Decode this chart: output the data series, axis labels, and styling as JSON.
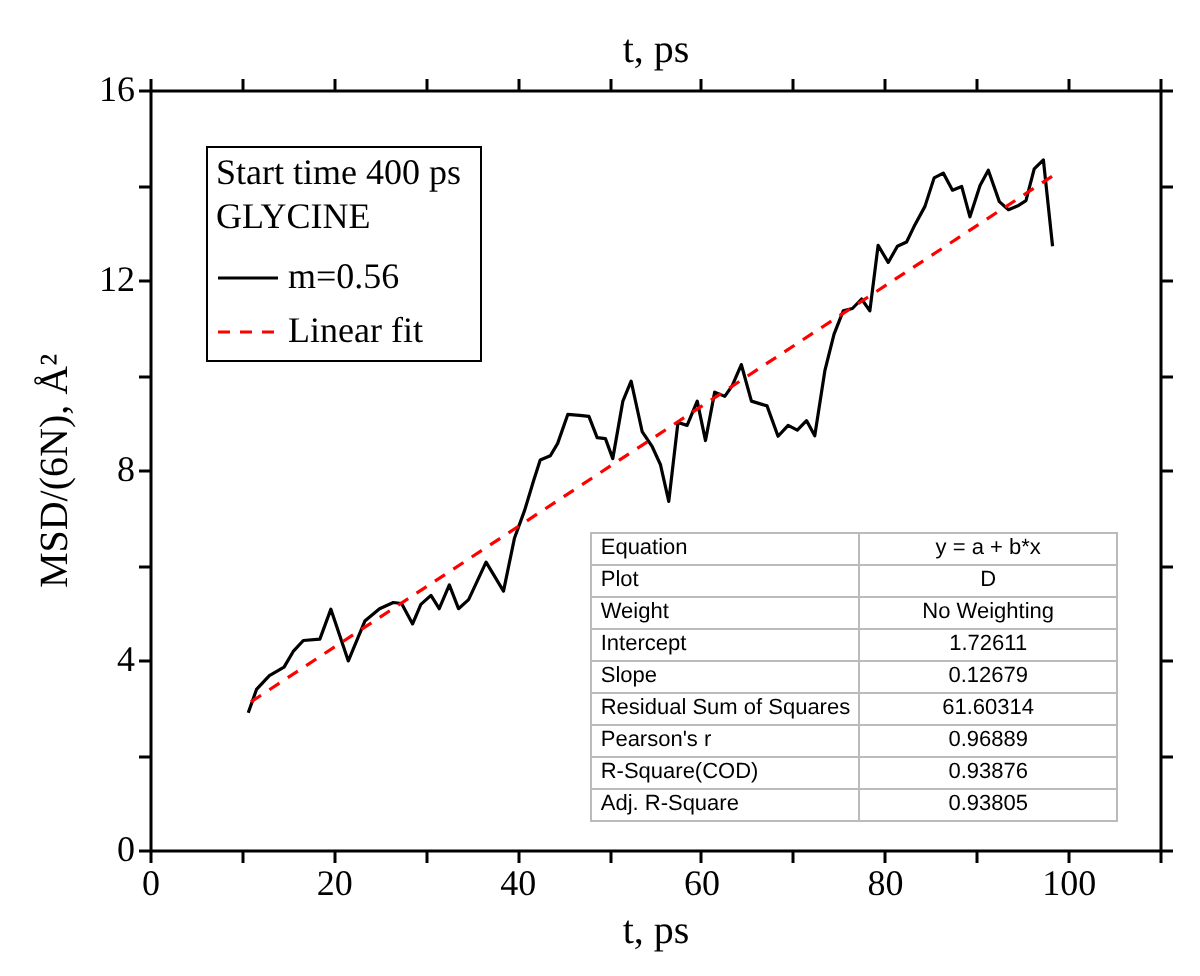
{
  "chart_data": {
    "type": "line",
    "xlabel": "t, ps",
    "x2label": "t, ps",
    "ylabel": "MSD/(6N), Å²",
    "legend_title": "Start time  400 ps\nGLYCINE",
    "legend": "top left",
    "grid": false,
    "tick_labels": "xy",
    "xlim": [
      0,
      110
    ],
    "xticks": [
      0,
      {
        "value": 10,
        "label": null
      },
      20,
      {
        "value": 30,
        "label": null
      },
      40,
      {
        "value": 50,
        "label": null
      },
      60,
      {
        "value": 70,
        "label": null
      },
      80,
      {
        "value": 90,
        "label": null
      },
      100,
      {
        "value": 110,
        "label": null
      }
    ],
    "ylim": [
      0,
      16
    ],
    "yticks": [
      0,
      {
        "value": 2,
        "label": null
      },
      4,
      {
        "value": 6,
        "label": null
      },
      8,
      {
        "value": 10,
        "label": null
      },
      12,
      {
        "value": 14,
        "label": null
      },
      16
    ],
    "series": [
      {
        "name": "m=0.56",
        "color": "#000000",
        "line_style": "solid",
        "x": [
          10.7,
          11.6,
          13.0,
          14.6,
          15.6,
          16.7,
          18.5,
          19.7,
          21.6,
          23.4,
          25.0,
          26.5,
          27.4,
          28.6,
          29.5,
          30.6,
          31.5,
          32.6,
          33.6,
          34.7,
          36.6,
          38.5,
          39.7,
          40.8,
          41.8,
          42.5,
          43.6,
          44.4,
          45.5,
          46.8,
          47.8,
          48.7,
          49.6,
          50.4,
          51.5,
          52.4,
          53.6,
          54.7,
          55.6,
          56.5,
          57.5,
          58.5,
          59.6,
          60.5,
          61.5,
          62.6,
          63.4,
          64.4,
          65.5,
          67.2,
          68.4,
          69.5,
          70.5,
          71.5,
          72.4,
          73.5,
          74.5,
          75.5,
          76.5,
          77.5,
          78.4,
          79.3,
          80.4,
          81.4,
          82.4,
          83.3,
          84.4,
          85.4,
          86.4,
          87.4,
          88.4,
          89.3,
          90.4,
          91.3,
          92.5,
          93.5,
          94.6,
          95.4,
          96.3,
          97.3,
          98.3
        ],
        "values": [
          2.89,
          3.38,
          3.67,
          3.85,
          4.18,
          4.41,
          4.44,
          5.07,
          3.98,
          4.82,
          5.08,
          5.21,
          5.19,
          4.76,
          5.17,
          5.36,
          5.08,
          5.58,
          5.08,
          5.27,
          6.06,
          5.45,
          6.57,
          7.15,
          7.79,
          8.21,
          8.3,
          8.56,
          9.17,
          9.15,
          9.13,
          8.68,
          8.66,
          8.24,
          9.45,
          9.87,
          8.81,
          8.49,
          8.11,
          7.34,
          9.0,
          8.94,
          9.45,
          8.62,
          9.64,
          9.55,
          9.77,
          10.22,
          9.45,
          9.35,
          8.71,
          8.94,
          8.84,
          9.04,
          8.72,
          10.09,
          10.86,
          11.35,
          11.4,
          11.6,
          11.35,
          12.73,
          12.37,
          12.71,
          12.8,
          13.16,
          13.55,
          14.15,
          14.25,
          13.89,
          13.97,
          13.33,
          13.99,
          14.31,
          13.65,
          13.48,
          13.57,
          13.67,
          14.34,
          14.53,
          12.71
        ]
      },
      {
        "name": "Linear fit",
        "color": "#ff0000",
        "line_style": "dashed",
        "x": [
          11,
          98.3
        ],
        "values": [
          3.12,
          14.19
        ]
      }
    ],
    "annotations": [
      "Equation",
      "y = a + b*x",
      "Plot",
      "D",
      "Weight",
      "No Weighting",
      "Intercept",
      "1.72611",
      "Slope",
      "0.12679",
      "Residual Sum of Squares",
      "61.60314",
      "Pearson's r",
      "0.96889",
      "R-Square(COD)",
      "0.93876",
      "Adj. R-Square",
      "0.93805"
    ]
  }
}
